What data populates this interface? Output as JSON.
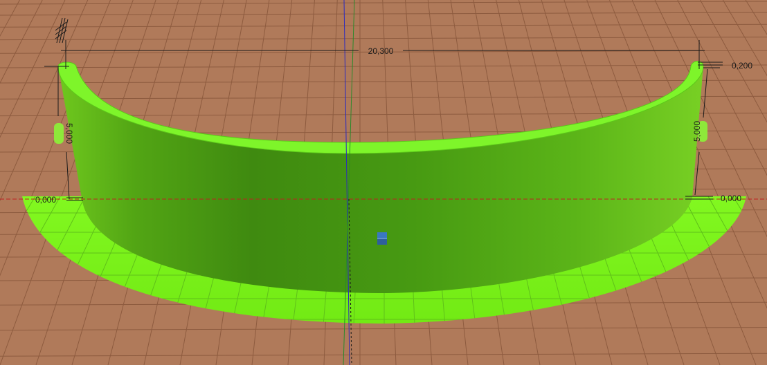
{
  "viewport": {
    "title": "",
    "colors": {
      "ground": "#b07a5a",
      "ground_grid": "#8a5a3e",
      "ground_grid_major": "#7a4e36",
      "base_fill": "#7cf51a",
      "wall_inner": "#5fb21a",
      "wall_outer_dark": "#3f8a10",
      "wall_top": "#7ef52a",
      "axis_x": "#c02020",
      "axis_y": "#2a8a2a",
      "axis_z": "#2a2ac0",
      "dimension_line": "#1a1a1a",
      "gizmo": "#3a78c0"
    }
  },
  "dimensions": {
    "width_label": "20,300",
    "thickness_label": "0,200",
    "height_left_label": "5,000",
    "height_right_label": "5,000",
    "base_left_label": "0,000",
    "base_right_label": "0,000"
  },
  "icons": {
    "view_gizmo": "transform-gizmo-icon",
    "hatch_marker": "hatch-marker-icon"
  }
}
